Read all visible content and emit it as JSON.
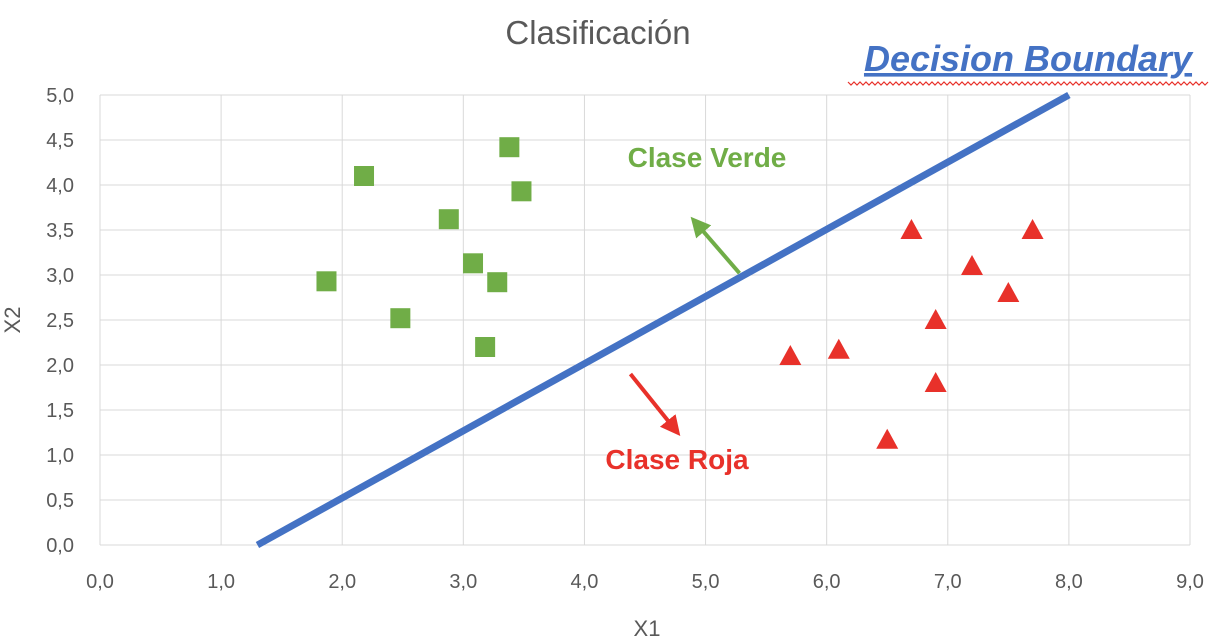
{
  "chart_data": {
    "type": "scatter",
    "title": "Clasificación",
    "xlabel": "X1",
    "ylabel": "X2",
    "xlim": [
      0,
      9
    ],
    "ylim": [
      0,
      5
    ],
    "x_ticks": [
      "0,0",
      "1,0",
      "2,0",
      "3,0",
      "4,0",
      "5,0",
      "6,0",
      "7,0",
      "8,0",
      "9,0"
    ],
    "y_ticks": [
      "0,0",
      "0,5",
      "1,0",
      "1,5",
      "2,0",
      "2,5",
      "3,0",
      "3,5",
      "4,0",
      "4,5",
      "5,0"
    ],
    "grid": true,
    "series": [
      {
        "marker": "square",
        "color": "#70ad47",
        "points": [
          [
            1.87,
            2.93
          ],
          [
            2.18,
            4.1
          ],
          [
            2.48,
            2.52
          ],
          [
            2.88,
            3.62
          ],
          [
            3.08,
            3.13
          ],
          [
            3.18,
            2.2
          ],
          [
            3.28,
            2.92
          ],
          [
            3.38,
            4.42
          ],
          [
            3.48,
            3.93
          ]
        ]
      },
      {
        "marker": "triangle",
        "color": "#e8312a",
        "points": [
          [
            5.7,
            2.1
          ],
          [
            6.1,
            2.17
          ],
          [
            6.5,
            1.17
          ],
          [
            6.7,
            3.5
          ],
          [
            6.9,
            2.5
          ],
          [
            6.9,
            1.8
          ],
          [
            7.2,
            3.1
          ],
          [
            7.5,
            2.8
          ],
          [
            7.7,
            3.5
          ]
        ]
      }
    ],
    "boundary_line": {
      "color": "#4472c4",
      "from": [
        1.3,
        0.0
      ],
      "to": [
        8.0,
        5.0
      ]
    },
    "annotations": [
      {
        "text": "Clase Verde",
        "color": "#70ad47",
        "arrow_from": [
          5.28,
          3.02
        ],
        "arrow_to": [
          4.92,
          3.58
        ]
      },
      {
        "text": "Clase Roja",
        "color": "#e8312a",
        "arrow_from": [
          4.38,
          1.9
        ],
        "arrow_to": [
          4.75,
          1.28
        ]
      }
    ],
    "boundary_label": {
      "text": "Decision Boundary",
      "color": "#4472c4"
    }
  }
}
